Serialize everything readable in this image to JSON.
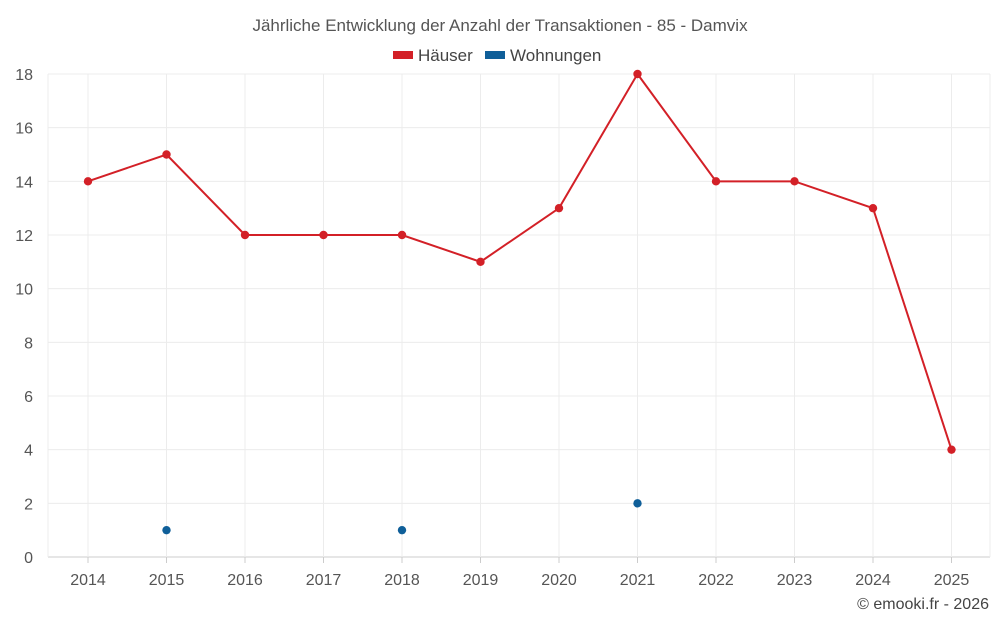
{
  "chart_data": {
    "type": "line",
    "title": "Jährliche Entwicklung der Anzahl der Transaktionen - 85 - Damvix",
    "categories": [
      "2014",
      "2015",
      "2016",
      "2017",
      "2018",
      "2019",
      "2020",
      "2021",
      "2022",
      "2023",
      "2024",
      "2025"
    ],
    "series": [
      {
        "name": "Häuser",
        "color": "#d32027",
        "values": [
          14,
          15,
          12,
          12,
          12,
          11,
          13,
          18,
          14,
          14,
          13,
          4
        ]
      },
      {
        "name": "Wohnungen",
        "color": "#0f5f99",
        "values": [
          null,
          1,
          null,
          null,
          1,
          null,
          null,
          2,
          null,
          null,
          null,
          null
        ]
      }
    ],
    "ylim": [
      0,
      18
    ],
    "yticks": [
      0,
      2,
      4,
      6,
      8,
      10,
      12,
      14,
      16,
      18
    ],
    "grid": true,
    "legend_position": "top-center"
  },
  "footer": {
    "credit": "© emooki.fr - 2026"
  }
}
